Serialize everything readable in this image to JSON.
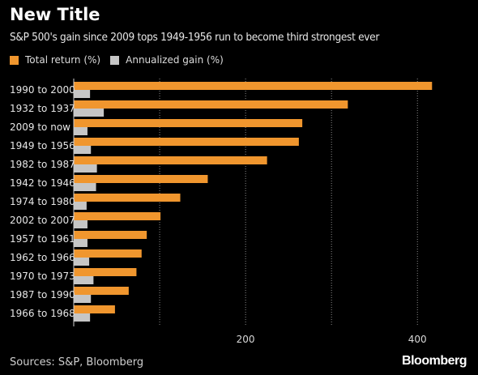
{
  "header": {
    "title": "New Title",
    "subtitle": "S&P 500's gain since 2009 tops 1949-1956 run to become third strongest ever"
  },
  "legend": [
    {
      "label": "Total return (%)",
      "color": "#f0962e"
    },
    {
      "label": "Annualized gain (%)",
      "color": "#c6c6c6"
    }
  ],
  "footer": {
    "source": "Sources: S&P, Bloomberg",
    "brand": "Bloomberg"
  },
  "chart_data": {
    "type": "bar",
    "orientation": "horizontal",
    "categories": [
      "1990 to 2000",
      "1932 to 1937",
      "2009 to now",
      "1949 to 1956",
      "1982 to 1987",
      "1942 to 1946",
      "1974 to 1980",
      "2002 to 2007",
      "1957 to 1961",
      "1962 to 1966",
      "1970 to 1973",
      "1987 to 1990",
      "1966 to 1968"
    ],
    "series": [
      {
        "name": "Total return (%)",
        "color": "#f0962e",
        "values": [
          417,
          319,
          266,
          262,
          225,
          156,
          124,
          101,
          85,
          79,
          73,
          64,
          48
        ]
      },
      {
        "name": "Annualized gain (%)",
        "color": "#c6c6c6",
        "values": [
          19,
          35,
          16,
          20,
          27,
          26,
          15,
          16,
          16,
          18,
          23,
          20,
          19
        ]
      }
    ],
    "xlim": [
      0,
      445
    ],
    "xticks": [
      100,
      200,
      300,
      400
    ],
    "xtick_labels": [
      "",
      "200",
      "",
      "400"
    ],
    "grid": true,
    "legend_position": "top-left"
  }
}
